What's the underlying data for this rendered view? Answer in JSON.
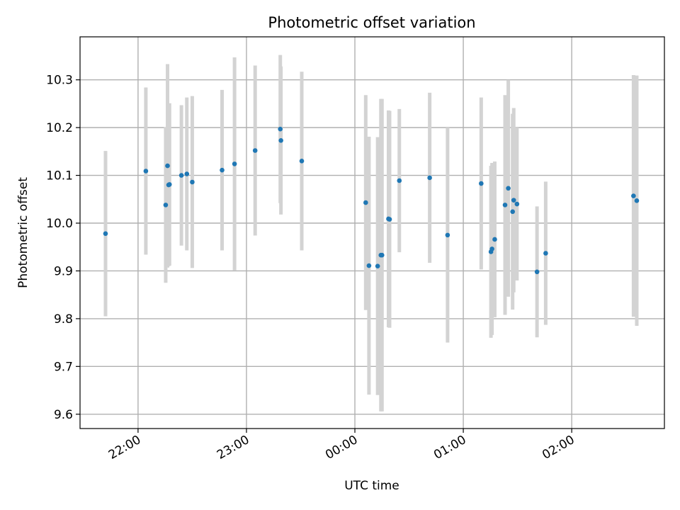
{
  "chart_data": {
    "type": "scatter",
    "title": "Photometric offset variation",
    "xlabel": "UTC time",
    "ylabel": "Photometric offset",
    "x_axis_kind": "time",
    "x_unit": "hours relative to 00:00 UTC",
    "xlim": [
      -2.535,
      2.855
    ],
    "ylim": [
      9.57,
      10.39
    ],
    "grid": true,
    "x_ticks": [
      {
        "value": -2,
        "label": "22:00"
      },
      {
        "value": -1,
        "label": "23:00"
      },
      {
        "value": 0,
        "label": "00:00"
      },
      {
        "value": 1,
        "label": "01:00"
      },
      {
        "value": 2,
        "label": "02:00"
      }
    ],
    "y_ticks": [
      {
        "value": 9.6,
        "label": "9.6"
      },
      {
        "value": 9.7,
        "label": "9.7"
      },
      {
        "value": 9.8,
        "label": "9.8"
      },
      {
        "value": 9.9,
        "label": "9.9"
      },
      {
        "value": 10.0,
        "label": "10.0"
      },
      {
        "value": 10.1,
        "label": "10.1"
      },
      {
        "value": 10.2,
        "label": "10.2"
      },
      {
        "value": 10.3,
        "label": "10.3"
      }
    ],
    "colors": {
      "points": "#1f77b4",
      "error_bars": "#d3d3d3"
    },
    "points": [
      {
        "x": -2.3,
        "y": 9.978,
        "err": 0.173
      },
      {
        "x": -1.928,
        "y": 10.109,
        "err": 0.175
      },
      {
        "x": -1.745,
        "y": 10.038,
        "err": 0.163
      },
      {
        "x": -1.728,
        "y": 10.12,
        "err": 0.213
      },
      {
        "x": -1.718,
        "y": 10.08,
        "err": 0.17
      },
      {
        "x": -1.71,
        "y": 10.081,
        "err": 0.17
      },
      {
        "x": -1.6,
        "y": 10.1,
        "err": 0.147
      },
      {
        "x": -1.55,
        "y": 10.103,
        "err": 0.16
      },
      {
        "x": -1.5,
        "y": 10.086,
        "err": 0.18
      },
      {
        "x": -1.225,
        "y": 10.111,
        "err": 0.168
      },
      {
        "x": -1.11,
        "y": 10.124,
        "err": 0.223
      },
      {
        "x": -0.92,
        "y": 10.152,
        "err": 0.178
      },
      {
        "x": -0.688,
        "y": 10.197,
        "err": 0.155
      },
      {
        "x": -0.682,
        "y": 10.173,
        "err": 0.155
      },
      {
        "x": -0.49,
        "y": 10.13,
        "err": 0.187
      },
      {
        "x": 0.1,
        "y": 10.043,
        "err": 0.225
      },
      {
        "x": 0.13,
        "y": 9.911,
        "err": 0.27
      },
      {
        "x": 0.21,
        "y": 9.91,
        "err": 0.27
      },
      {
        "x": 0.24,
        "y": 9.933,
        "err": 0.327
      },
      {
        "x": 0.25,
        "y": 9.933,
        "err": 0.327
      },
      {
        "x": 0.31,
        "y": 10.009,
        "err": 0.227
      },
      {
        "x": 0.32,
        "y": 10.008,
        "err": 0.227
      },
      {
        "x": 0.41,
        "y": 10.089,
        "err": 0.15
      },
      {
        "x": 0.69,
        "y": 10.095,
        "err": 0.178
      },
      {
        "x": 0.855,
        "y": 9.975,
        "err": 0.225
      },
      {
        "x": 1.165,
        "y": 10.083,
        "err": 0.18
      },
      {
        "x": 1.255,
        "y": 9.94,
        "err": 0.18
      },
      {
        "x": 1.265,
        "y": 9.946,
        "err": 0.18
      },
      {
        "x": 1.29,
        "y": 9.966,
        "err": 0.163
      },
      {
        "x": 1.385,
        "y": 10.038,
        "err": 0.23
      },
      {
        "x": 1.415,
        "y": 10.073,
        "err": 0.227
      },
      {
        "x": 1.455,
        "y": 10.024,
        "err": 0.205
      },
      {
        "x": 1.465,
        "y": 10.048,
        "err": 0.193
      },
      {
        "x": 1.495,
        "y": 10.04,
        "err": 0.16
      },
      {
        "x": 1.68,
        "y": 9.898,
        "err": 0.137
      },
      {
        "x": 1.76,
        "y": 9.937,
        "err": 0.15
      },
      {
        "x": 2.57,
        "y": 10.057,
        "err": 0.253
      },
      {
        "x": 2.6,
        "y": 10.047,
        "err": 0.262
      }
    ]
  }
}
